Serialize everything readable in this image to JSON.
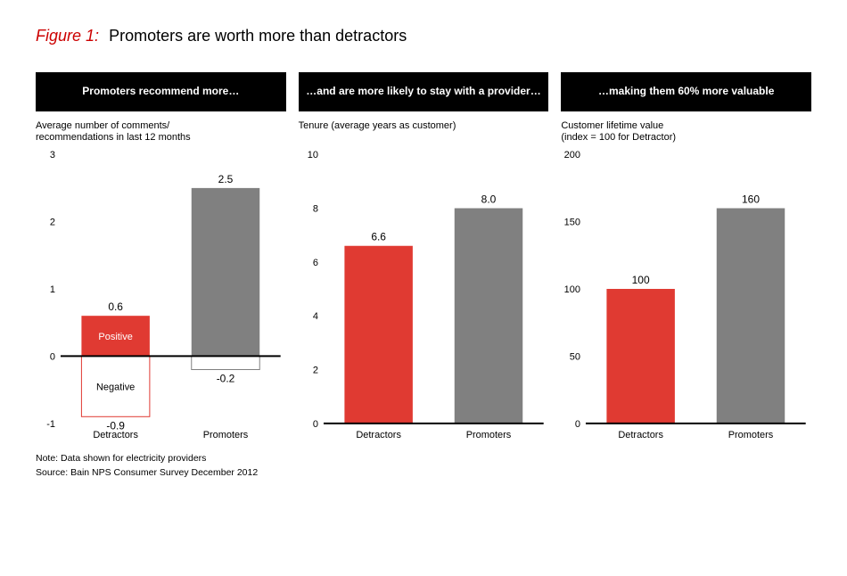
{
  "figure_label": "Figure 1:",
  "figure_label_color": "#cc0000",
  "figure_title": "Promoters are worth more than detractors",
  "header_bg": "#000000",
  "categories": [
    "Detractors",
    "Promoters"
  ],
  "axis_line_color": "#000000",
  "panels": [
    {
      "header": "Promoters recommend more…",
      "subtitle": "Average number of comments/\nrecommendations in last 12 months",
      "type": "stacked",
      "ylim": [
        -1,
        3
      ],
      "ytick_step": 1,
      "series": [
        {
          "cat": "Detractors",
          "pos": 0.6,
          "neg": -0.9,
          "pos_color": "#e03a32",
          "neg_fill": "#ffffff",
          "neg_stroke": "#e03a32",
          "pos_text": "Positive",
          "neg_text": "Negative"
        },
        {
          "cat": "Promoters",
          "pos": 2.5,
          "neg": -0.2,
          "pos_color": "#808080",
          "neg_fill": "#ffffff",
          "neg_stroke": "#808080"
        }
      ]
    },
    {
      "header": "…and are more likely to stay with a provider…",
      "subtitle": "Tenure (average years as customer)",
      "type": "bar",
      "ylim": [
        0,
        10
      ],
      "ytick_step": 2,
      "bars": [
        {
          "cat": "Detractors",
          "value": 6.6,
          "label": "6.6",
          "color": "#e03a32"
        },
        {
          "cat": "Promoters",
          "value": 8.0,
          "label": "8.0",
          "color": "#808080"
        }
      ]
    },
    {
      "header": "…making them 60% more valuable",
      "subtitle": "Customer lifetime value\n(index = 100 for Detractor)",
      "type": "bar",
      "ylim": [
        0,
        200
      ],
      "ytick_step": 50,
      "bars": [
        {
          "cat": "Detractors",
          "value": 100,
          "label": "100",
          "color": "#e03a32"
        },
        {
          "cat": "Promoters",
          "value": 160,
          "label": "160",
          "color": "#808080"
        }
      ]
    }
  ],
  "note": "Note: Data shown for electricity providers",
  "source": "Source: Bain NPS Consumer Survey December 2012"
}
